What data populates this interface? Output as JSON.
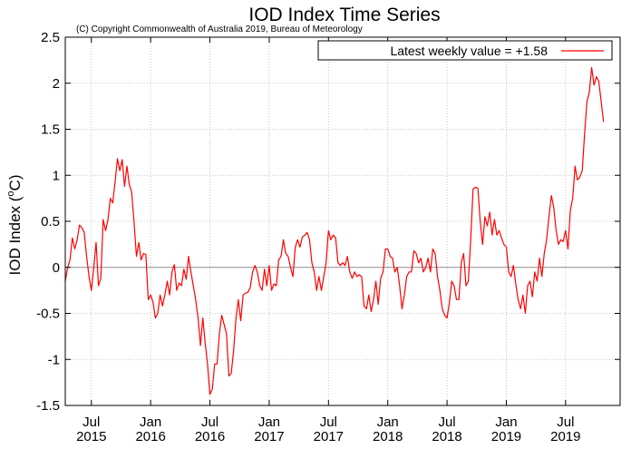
{
  "chart_data": {
    "type": "line",
    "title": "IOD Index Time Series",
    "subtitle": "(C) Copyright Commonwealth of Australia 2019, Bureau of Meteorology",
    "ylabel_main": "IOD Index (",
    "ylabel_sup": "o",
    "ylabel_unit": "C)",
    "xlabel": "",
    "legend": {
      "label": "Latest weekly value = +1.58",
      "position": "top-right"
    },
    "ylim": [
      -1.5,
      2.5
    ],
    "xlim": [
      2015.28,
      2019.96
    ],
    "grid": true,
    "zero_line": true,
    "yticks": [
      {
        "value": -1.5,
        "label": "-1.5"
      },
      {
        "value": -1,
        "label": "-1"
      },
      {
        "value": -0.5,
        "label": "-0.5"
      },
      {
        "value": 0,
        "label": "0"
      },
      {
        "value": 0.5,
        "label": "0.5"
      },
      {
        "value": 1,
        "label": "1"
      },
      {
        "value": 1.5,
        "label": "1.5"
      },
      {
        "value": 2,
        "label": "2"
      },
      {
        "value": 2.5,
        "label": "2.5"
      }
    ],
    "xticks": [
      {
        "value": 2015.5,
        "month": "Jul",
        "year": "2015"
      },
      {
        "value": 2016.0,
        "month": "Jan",
        "year": "2016"
      },
      {
        "value": 2016.5,
        "month": "Jul",
        "year": "2016"
      },
      {
        "value": 2017.0,
        "month": "Jan",
        "year": "2017"
      },
      {
        "value": 2017.5,
        "month": "Jul",
        "year": "2017"
      },
      {
        "value": 2018.0,
        "month": "Jan",
        "year": "2018"
      },
      {
        "value": 2018.5,
        "month": "Jul",
        "year": "2018"
      },
      {
        "value": 2019.0,
        "month": "Jan",
        "year": "2019"
      },
      {
        "value": 2019.5,
        "month": "Jul",
        "year": "2019"
      }
    ],
    "series": [
      {
        "color": "#ff0000",
        "points": [
          [
            2015.28,
            -0.15
          ],
          [
            2015.3,
            0.0
          ],
          [
            2015.32,
            0.08
          ],
          [
            2015.34,
            0.32
          ],
          [
            2015.36,
            0.2
          ],
          [
            2015.38,
            0.3
          ],
          [
            2015.4,
            0.46
          ],
          [
            2015.42,
            0.43
          ],
          [
            2015.44,
            0.38
          ],
          [
            2015.46,
            0.12
          ],
          [
            2015.48,
            -0.1
          ],
          [
            2015.5,
            -0.25
          ],
          [
            2015.52,
            0.0
          ],
          [
            2015.54,
            0.27
          ],
          [
            2015.56,
            -0.2
          ],
          [
            2015.58,
            -0.12
          ],
          [
            2015.6,
            0.52
          ],
          [
            2015.62,
            0.4
          ],
          [
            2015.64,
            0.52
          ],
          [
            2015.66,
            0.75
          ],
          [
            2015.68,
            0.7
          ],
          [
            2015.7,
            0.92
          ],
          [
            2015.72,
            1.18
          ],
          [
            2015.74,
            1.05
          ],
          [
            2015.76,
            1.17
          ],
          [
            2015.78,
            0.88
          ],
          [
            2015.8,
            1.1
          ],
          [
            2015.82,
            0.9
          ],
          [
            2015.84,
            0.82
          ],
          [
            2015.86,
            0.5
          ],
          [
            2015.88,
            0.12
          ],
          [
            2015.9,
            0.27
          ],
          [
            2015.92,
            0.08
          ],
          [
            2015.94,
            0.15
          ],
          [
            2015.96,
            0.14
          ],
          [
            2015.98,
            -0.35
          ],
          [
            2016.0,
            -0.3
          ],
          [
            2016.02,
            -0.38
          ],
          [
            2016.04,
            -0.55
          ],
          [
            2016.06,
            -0.5
          ],
          [
            2016.08,
            -0.3
          ],
          [
            2016.1,
            -0.42
          ],
          [
            2016.12,
            -0.3
          ],
          [
            2016.14,
            -0.15
          ],
          [
            2016.16,
            -0.3
          ],
          [
            2016.18,
            -0.05
          ],
          [
            2016.2,
            0.03
          ],
          [
            2016.22,
            -0.25
          ],
          [
            2016.24,
            -0.17
          ],
          [
            2016.26,
            -0.2
          ],
          [
            2016.28,
            -0.02
          ],
          [
            2016.3,
            -0.13
          ],
          [
            2016.32,
            0.12
          ],
          [
            2016.34,
            -0.05
          ],
          [
            2016.36,
            -0.2
          ],
          [
            2016.38,
            -0.35
          ],
          [
            2016.4,
            -0.55
          ],
          [
            2016.42,
            -0.85
          ],
          [
            2016.44,
            -0.55
          ],
          [
            2016.46,
            -0.82
          ],
          [
            2016.48,
            -1.05
          ],
          [
            2016.5,
            -1.38
          ],
          [
            2016.52,
            -1.32
          ],
          [
            2016.54,
            -1.05
          ],
          [
            2016.56,
            -1.05
          ],
          [
            2016.58,
            -0.72
          ],
          [
            2016.6,
            -0.52
          ],
          [
            2016.62,
            -0.62
          ],
          [
            2016.64,
            -0.72
          ],
          [
            2016.66,
            -1.18
          ],
          [
            2016.68,
            -1.15
          ],
          [
            2016.7,
            -0.9
          ],
          [
            2016.72,
            -0.55
          ],
          [
            2016.74,
            -0.35
          ],
          [
            2016.76,
            -0.58
          ],
          [
            2016.78,
            -0.3
          ],
          [
            2016.8,
            -0.28
          ],
          [
            2016.82,
            -0.27
          ],
          [
            2016.84,
            -0.22
          ],
          [
            2016.86,
            -0.05
          ],
          [
            2016.88,
            0.02
          ],
          [
            2016.9,
            -0.05
          ],
          [
            2016.92,
            -0.2
          ],
          [
            2016.94,
            -0.25
          ],
          [
            2016.96,
            -0.02
          ],
          [
            2016.98,
            -0.2
          ],
          [
            2017.0,
            0.02
          ],
          [
            2017.02,
            -0.25
          ],
          [
            2017.04,
            -0.18
          ],
          [
            2017.06,
            -0.2
          ],
          [
            2017.08,
            0.08
          ],
          [
            2017.1,
            0.12
          ],
          [
            2017.12,
            0.3
          ],
          [
            2017.14,
            0.15
          ],
          [
            2017.16,
            0.12
          ],
          [
            2017.18,
            0.0
          ],
          [
            2017.2,
            -0.1
          ],
          [
            2017.22,
            0.22
          ],
          [
            2017.24,
            0.3
          ],
          [
            2017.26,
            0.22
          ],
          [
            2017.28,
            0.33
          ],
          [
            2017.3,
            0.35
          ],
          [
            2017.32,
            0.38
          ],
          [
            2017.34,
            0.3
          ],
          [
            2017.36,
            0.05
          ],
          [
            2017.38,
            -0.05
          ],
          [
            2017.4,
            -0.25
          ],
          [
            2017.42,
            -0.1
          ],
          [
            2017.44,
            -0.25
          ],
          [
            2017.46,
            -0.1
          ],
          [
            2017.48,
            0.05
          ],
          [
            2017.5,
            0.4
          ],
          [
            2017.52,
            0.3
          ],
          [
            2017.54,
            0.35
          ],
          [
            2017.56,
            0.32
          ],
          [
            2017.58,
            0.05
          ],
          [
            2017.6,
            0.02
          ],
          [
            2017.62,
            0.05
          ],
          [
            2017.64,
            0.02
          ],
          [
            2017.66,
            0.12
          ],
          [
            2017.68,
            -0.05
          ],
          [
            2017.7,
            -0.12
          ],
          [
            2017.72,
            -0.05
          ],
          [
            2017.74,
            -0.1
          ],
          [
            2017.76,
            -0.08
          ],
          [
            2017.78,
            -0.1
          ],
          [
            2017.8,
            -0.42
          ],
          [
            2017.82,
            -0.45
          ],
          [
            2017.84,
            -0.3
          ],
          [
            2017.86,
            -0.48
          ],
          [
            2017.88,
            -0.35
          ],
          [
            2017.9,
            -0.15
          ],
          [
            2017.92,
            -0.4
          ],
          [
            2017.94,
            -0.12
          ],
          [
            2017.96,
            -0.05
          ],
          [
            2017.98,
            0.2
          ],
          [
            2018.0,
            0.2
          ],
          [
            2018.02,
            0.12
          ],
          [
            2018.04,
            0.1
          ],
          [
            2018.06,
            -0.05
          ],
          [
            2018.08,
            0.0
          ],
          [
            2018.1,
            -0.2
          ],
          [
            2018.12,
            -0.45
          ],
          [
            2018.14,
            -0.3
          ],
          [
            2018.16,
            -0.1
          ],
          [
            2018.18,
            -0.05
          ],
          [
            2018.2,
            -0.05
          ],
          [
            2018.22,
            0.18
          ],
          [
            2018.24,
            0.15
          ],
          [
            2018.26,
            0.05
          ],
          [
            2018.28,
            0.1
          ],
          [
            2018.3,
            -0.05
          ],
          [
            2018.32,
            0.0
          ],
          [
            2018.34,
            0.1
          ],
          [
            2018.36,
            -0.05
          ],
          [
            2018.38,
            0.2
          ],
          [
            2018.4,
            0.15
          ],
          [
            2018.42,
            -0.1
          ],
          [
            2018.44,
            -0.25
          ],
          [
            2018.46,
            -0.45
          ],
          [
            2018.48,
            -0.52
          ],
          [
            2018.5,
            -0.55
          ],
          [
            2018.52,
            -0.38
          ],
          [
            2018.54,
            -0.15
          ],
          [
            2018.56,
            -0.2
          ],
          [
            2018.58,
            -0.35
          ],
          [
            2018.6,
            -0.35
          ],
          [
            2018.62,
            0.05
          ],
          [
            2018.64,
            0.15
          ],
          [
            2018.66,
            -0.2
          ],
          [
            2018.68,
            -0.15
          ],
          [
            2018.7,
            0.3
          ],
          [
            2018.72,
            0.85
          ],
          [
            2018.74,
            0.87
          ],
          [
            2018.76,
            0.86
          ],
          [
            2018.78,
            0.5
          ],
          [
            2018.8,
            0.25
          ],
          [
            2018.82,
            0.55
          ],
          [
            2018.84,
            0.45
          ],
          [
            2018.86,
            0.6
          ],
          [
            2018.88,
            0.35
          ],
          [
            2018.9,
            0.52
          ],
          [
            2018.92,
            0.35
          ],
          [
            2018.94,
            0.4
          ],
          [
            2018.96,
            0.32
          ],
          [
            2018.98,
            0.25
          ],
          [
            2019.0,
            0.22
          ],
          [
            2019.02,
            -0.05
          ],
          [
            2019.04,
            -0.1
          ],
          [
            2019.06,
            0.02
          ],
          [
            2019.08,
            -0.18
          ],
          [
            2019.1,
            -0.35
          ],
          [
            2019.12,
            -0.45
          ],
          [
            2019.14,
            -0.3
          ],
          [
            2019.16,
            -0.5
          ],
          [
            2019.18,
            -0.2
          ],
          [
            2019.2,
            -0.15
          ],
          [
            2019.22,
            -0.32
          ],
          [
            2019.24,
            -0.05
          ],
          [
            2019.26,
            -0.15
          ],
          [
            2019.28,
            0.1
          ],
          [
            2019.3,
            -0.1
          ],
          [
            2019.32,
            0.15
          ],
          [
            2019.34,
            0.3
          ],
          [
            2019.36,
            0.55
          ],
          [
            2019.38,
            0.78
          ],
          [
            2019.4,
            0.65
          ],
          [
            2019.42,
            0.4
          ],
          [
            2019.44,
            0.25
          ],
          [
            2019.46,
            0.3
          ],
          [
            2019.48,
            0.28
          ],
          [
            2019.5,
            0.4
          ],
          [
            2019.52,
            0.2
          ],
          [
            2019.54,
            0.62
          ],
          [
            2019.56,
            0.75
          ],
          [
            2019.58,
            1.1
          ],
          [
            2019.6,
            0.95
          ],
          [
            2019.62,
            0.98
          ],
          [
            2019.64,
            1.05
          ],
          [
            2019.66,
            1.45
          ],
          [
            2019.68,
            1.8
          ],
          [
            2019.7,
            1.9
          ],
          [
            2019.72,
            2.17
          ],
          [
            2019.74,
            1.98
          ],
          [
            2019.76,
            2.07
          ],
          [
            2019.78,
            2.02
          ],
          [
            2019.8,
            1.8
          ],
          [
            2019.82,
            1.58
          ]
        ]
      }
    ]
  }
}
